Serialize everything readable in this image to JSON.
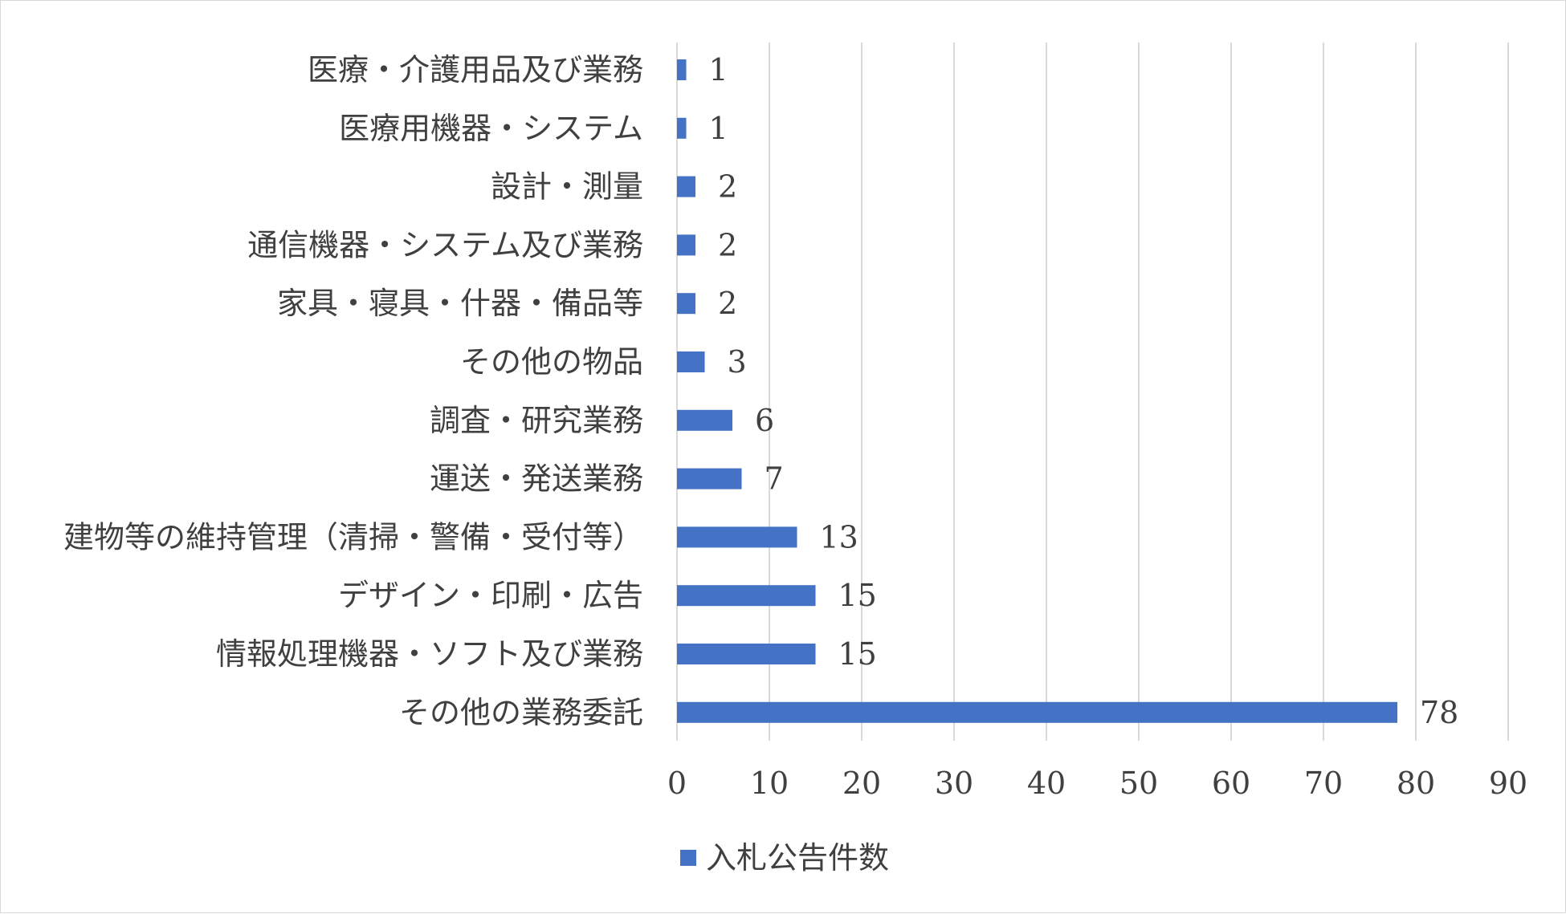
{
  "chart_data": {
    "type": "bar",
    "orientation": "horizontal",
    "categories": [
      "医療・介護用品及び業務",
      "医療用機器・システム",
      "設計・測量",
      "通信機器・システム及び業務",
      "家具・寝具・什器・備品等",
      "その他の物品",
      "調査・研究業務",
      "運送・発送業務",
      "建物等の維持管理（清掃・警備・受付等）",
      "デザイン・印刷・広告",
      "情報処理機器・ソフト及び業務",
      "その他の業務委託"
    ],
    "series": [
      {
        "name": "入札公告件数",
        "values": [
          1,
          1,
          2,
          2,
          2,
          3,
          6,
          7,
          13,
          15,
          15,
          78
        ],
        "color": "#4472c4"
      }
    ],
    "xlim": [
      0,
      90
    ],
    "xticks": [
      0,
      10,
      20,
      30,
      40,
      50,
      60,
      70,
      80,
      90
    ],
    "grid": "vertical",
    "data_labels": true,
    "legend_position": "bottom",
    "colors": {
      "bar": "#4472c4",
      "grid": "#d9d9d9",
      "text": "#404040"
    }
  }
}
